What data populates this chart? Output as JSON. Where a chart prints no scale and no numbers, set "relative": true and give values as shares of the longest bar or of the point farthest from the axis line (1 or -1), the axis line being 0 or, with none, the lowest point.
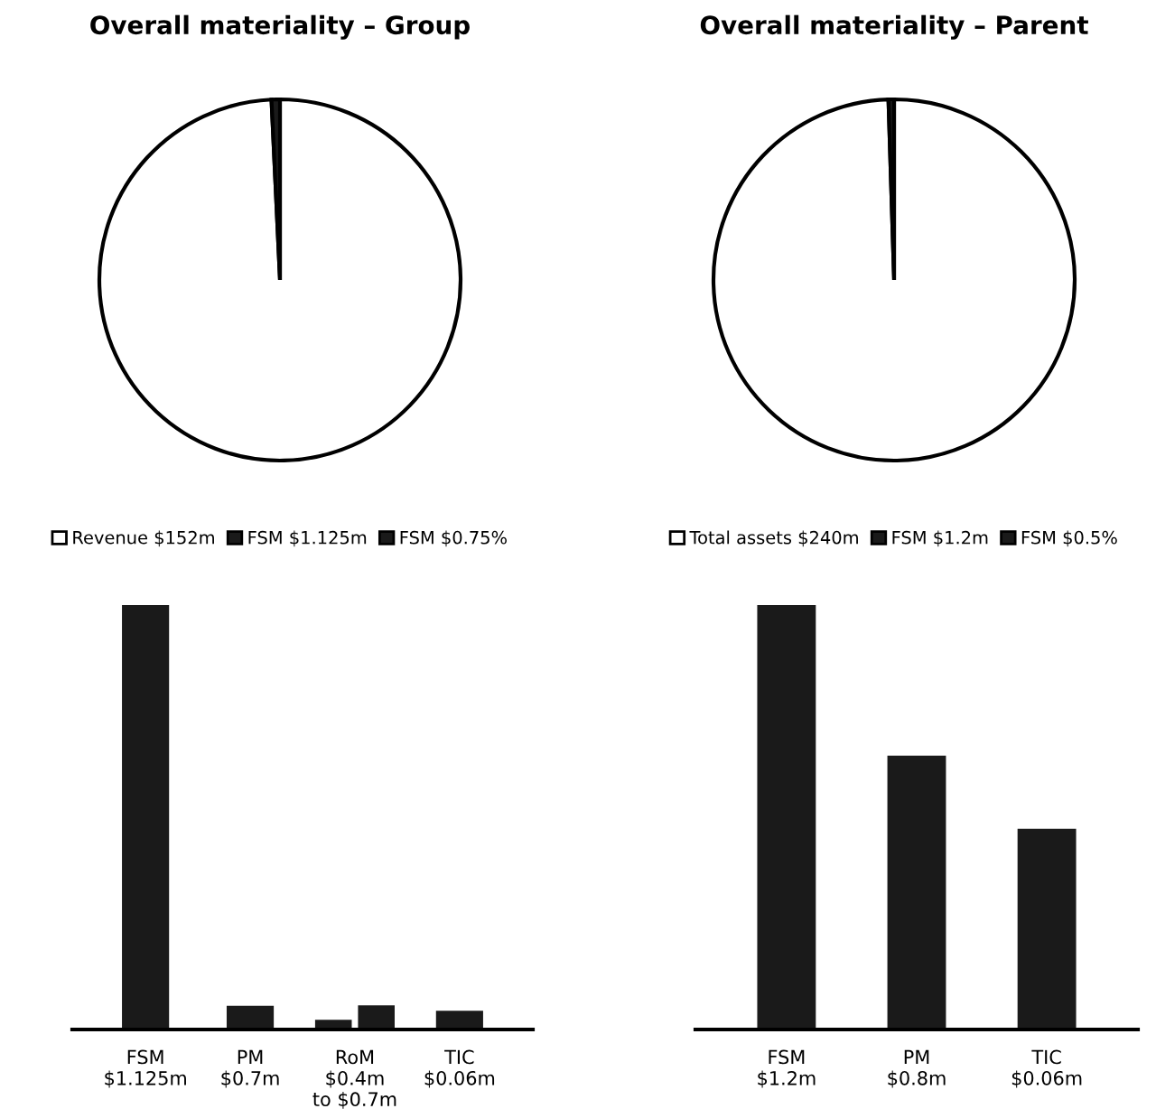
{
  "chart_data": [
    {
      "type": "pie",
      "title": "Overall materiality – Group",
      "categories": [
        "Revenue $152m",
        "FSM $1.125m",
        "FSM $0.75%"
      ],
      "values": [
        99.25,
        0.75,
        null
      ],
      "colors": [
        "#ffffff",
        "#1a1a1a",
        "#1a1a1a"
      ],
      "legend": "bottom"
    },
    {
      "type": "pie",
      "title": "Overall materiality – Parent",
      "categories": [
        "Total assets $240m",
        "FSM $1.2m",
        "FSM $0.5%"
      ],
      "values": [
        99.5,
        0.5,
        null
      ],
      "colors": [
        "#ffffff",
        "#1a1a1a",
        "#1a1a1a"
      ],
      "legend": "bottom"
    },
    {
      "type": "bar",
      "relative": true,
      "categories": [
        "FSM\n$1.125m",
        "PM\n$0.7m",
        "RoM\n$0.4m\nto $0.7m",
        "TIC\n$0.06m"
      ],
      "series": [
        {
          "color": "#1a1a1a",
          "values": [
            1,
            0.056,
            0.023,
            0.044
          ]
        },
        {
          "color": "#1a1a1a",
          "values": [
            null,
            null,
            0.057,
            null
          ]
        }
      ]
    },
    {
      "type": "bar",
      "relative": true,
      "categories": [
        "FSM\n$1.2m",
        "PM\n$0.8m",
        "TIC\n$0.06m"
      ],
      "series": [
        {
          "color": "#1a1a1a",
          "values": [
            1,
            0.645,
            0.473
          ]
        }
      ]
    }
  ]
}
